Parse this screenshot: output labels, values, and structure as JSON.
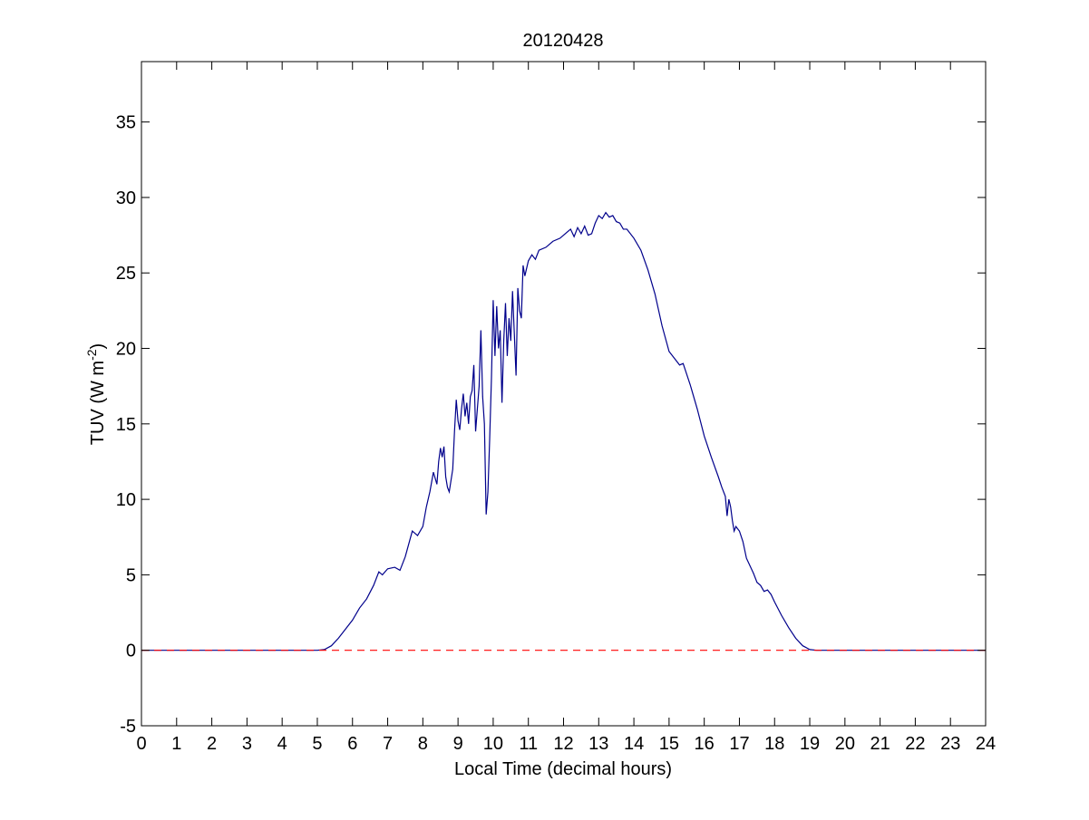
{
  "chart_data": {
    "type": "line",
    "title": "20120428",
    "xlabel": "Local Time (decimal hours)",
    "ylabel": "TUV (W m",
    "ylabel_sup": "-2",
    "ylabel_end": ")",
    "xlim": [
      0,
      24
    ],
    "ylim": [
      -5,
      39
    ],
    "xticks": [
      0,
      1,
      2,
      3,
      4,
      5,
      6,
      7,
      8,
      9,
      10,
      11,
      12,
      13,
      14,
      15,
      16,
      17,
      18,
      19,
      20,
      21,
      22,
      23,
      24
    ],
    "yticks": [
      -5,
      0,
      5,
      10,
      15,
      20,
      25,
      30,
      35
    ],
    "grid": false,
    "series": [
      {
        "color": "#00008b",
        "style": "solid",
        "points": [
          [
            0,
            0
          ],
          [
            5.0,
            0
          ],
          [
            5.2,
            0.05
          ],
          [
            5.4,
            0.3
          ],
          [
            5.6,
            0.8
          ],
          [
            5.8,
            1.4
          ],
          [
            6.0,
            2.0
          ],
          [
            6.2,
            2.8
          ],
          [
            6.4,
            3.4
          ],
          [
            6.6,
            4.3
          ],
          [
            6.75,
            5.2
          ],
          [
            6.85,
            5.0
          ],
          [
            7.0,
            5.4
          ],
          [
            7.2,
            5.5
          ],
          [
            7.35,
            5.3
          ],
          [
            7.5,
            6.2
          ],
          [
            7.7,
            7.9
          ],
          [
            7.85,
            7.6
          ],
          [
            8.0,
            8.2
          ],
          [
            8.1,
            9.5
          ],
          [
            8.2,
            10.5
          ],
          [
            8.3,
            11.8
          ],
          [
            8.4,
            11.0
          ],
          [
            8.45,
            12.5
          ],
          [
            8.5,
            13.4
          ],
          [
            8.55,
            12.8
          ],
          [
            8.6,
            13.5
          ],
          [
            8.65,
            11.5
          ],
          [
            8.7,
            10.8
          ],
          [
            8.75,
            10.5
          ],
          [
            8.85,
            12.0
          ],
          [
            8.9,
            14.5
          ],
          [
            8.95,
            16.6
          ],
          [
            9.0,
            15.2
          ],
          [
            9.05,
            14.6
          ],
          [
            9.1,
            16.0
          ],
          [
            9.15,
            17.0
          ],
          [
            9.2,
            15.5
          ],
          [
            9.25,
            16.4
          ],
          [
            9.3,
            15.0
          ],
          [
            9.35,
            16.8
          ],
          [
            9.4,
            17.2
          ],
          [
            9.45,
            18.9
          ],
          [
            9.5,
            14.5
          ],
          [
            9.55,
            16.0
          ],
          [
            9.6,
            17.5
          ],
          [
            9.65,
            21.2
          ],
          [
            9.7,
            16.8
          ],
          [
            9.75,
            15.0
          ],
          [
            9.8,
            9.0
          ],
          [
            9.85,
            10.5
          ],
          [
            9.9,
            14.0
          ],
          [
            9.95,
            18.0
          ],
          [
            10.0,
            23.2
          ],
          [
            10.05,
            19.5
          ],
          [
            10.1,
            22.8
          ],
          [
            10.15,
            20.0
          ],
          [
            10.2,
            21.2
          ],
          [
            10.25,
            16.4
          ],
          [
            10.3,
            20.5
          ],
          [
            10.35,
            23.0
          ],
          [
            10.4,
            19.5
          ],
          [
            10.45,
            22.0
          ],
          [
            10.5,
            20.5
          ],
          [
            10.55,
            23.8
          ],
          [
            10.6,
            21.0
          ],
          [
            10.65,
            18.2
          ],
          [
            10.7,
            24.0
          ],
          [
            10.75,
            22.5
          ],
          [
            10.8,
            22.0
          ],
          [
            10.85,
            25.5
          ],
          [
            10.9,
            24.8
          ],
          [
            11.0,
            25.8
          ],
          [
            11.1,
            26.2
          ],
          [
            11.2,
            25.9
          ],
          [
            11.3,
            26.5
          ],
          [
            11.5,
            26.7
          ],
          [
            11.7,
            27.1
          ],
          [
            11.9,
            27.3
          ],
          [
            12.0,
            27.5
          ],
          [
            12.2,
            27.9
          ],
          [
            12.3,
            27.4
          ],
          [
            12.4,
            28.0
          ],
          [
            12.5,
            27.6
          ],
          [
            12.6,
            28.1
          ],
          [
            12.7,
            27.5
          ],
          [
            12.8,
            27.6
          ],
          [
            12.9,
            28.3
          ],
          [
            13.0,
            28.8
          ],
          [
            13.1,
            28.6
          ],
          [
            13.2,
            29.0
          ],
          [
            13.3,
            28.7
          ],
          [
            13.4,
            28.8
          ],
          [
            13.5,
            28.4
          ],
          [
            13.6,
            28.3
          ],
          [
            13.7,
            27.9
          ],
          [
            13.8,
            27.9
          ],
          [
            14.0,
            27.3
          ],
          [
            14.2,
            26.5
          ],
          [
            14.4,
            25.2
          ],
          [
            14.6,
            23.6
          ],
          [
            14.8,
            21.5
          ],
          [
            15.0,
            19.8
          ],
          [
            15.2,
            19.2
          ],
          [
            15.3,
            18.9
          ],
          [
            15.4,
            19.0
          ],
          [
            15.6,
            17.6
          ],
          [
            15.8,
            16.0
          ],
          [
            16.0,
            14.2
          ],
          [
            16.2,
            12.8
          ],
          [
            16.4,
            11.5
          ],
          [
            16.5,
            10.8
          ],
          [
            16.6,
            10.2
          ],
          [
            16.65,
            8.9
          ],
          [
            16.7,
            10.0
          ],
          [
            16.75,
            9.5
          ],
          [
            16.8,
            8.6
          ],
          [
            16.85,
            7.9
          ],
          [
            16.9,
            8.2
          ],
          [
            17.0,
            7.9
          ],
          [
            17.1,
            7.2
          ],
          [
            17.2,
            6.1
          ],
          [
            17.4,
            5.1
          ],
          [
            17.5,
            4.5
          ],
          [
            17.6,
            4.3
          ],
          [
            17.7,
            3.9
          ],
          [
            17.8,
            4.0
          ],
          [
            17.9,
            3.7
          ],
          [
            18.0,
            3.2
          ],
          [
            18.2,
            2.3
          ],
          [
            18.4,
            1.5
          ],
          [
            18.6,
            0.8
          ],
          [
            18.8,
            0.3
          ],
          [
            19.0,
            0.05
          ],
          [
            19.2,
            0
          ],
          [
            24,
            0
          ]
        ]
      },
      {
        "color": "#ff0000",
        "style": "dashed",
        "points": [
          [
            0,
            0
          ],
          [
            24,
            0
          ]
        ]
      }
    ]
  }
}
